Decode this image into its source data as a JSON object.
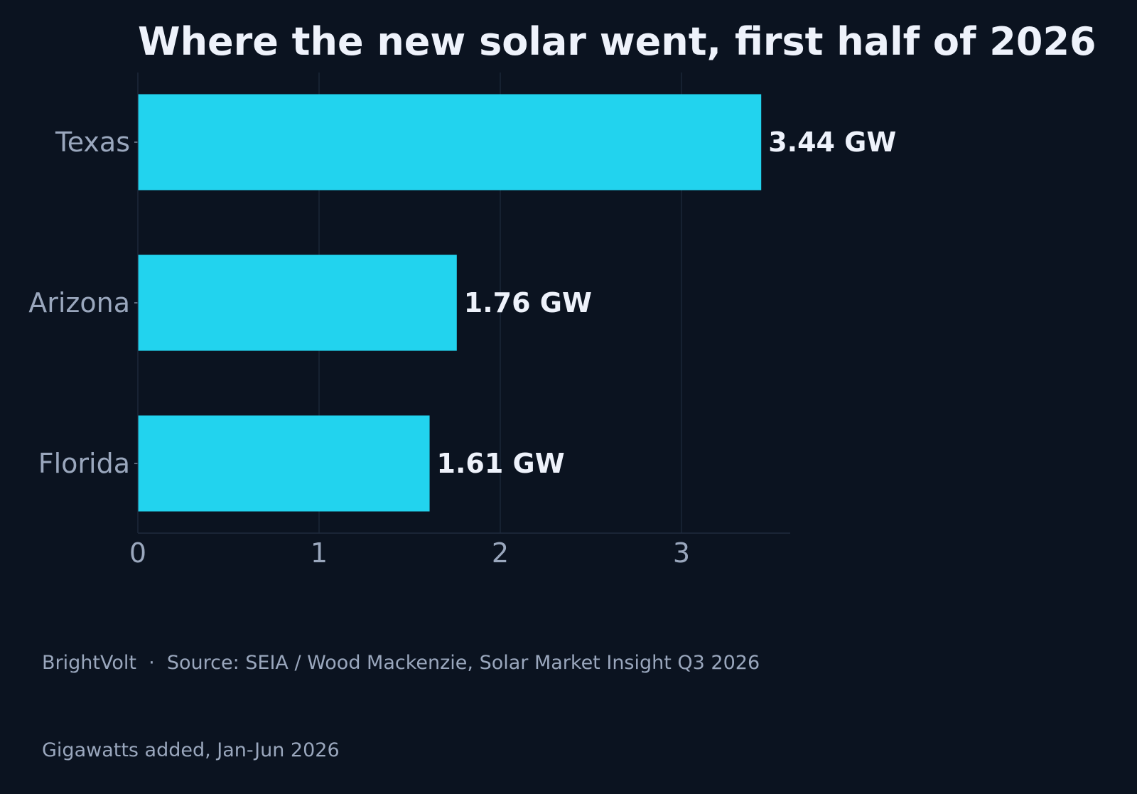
{
  "footer": {
    "source_line": "BrightVolt  ·  Source: SEIA / Wood Mackenzie, Solar Market Insight Q3 2026",
    "note_line": "Gigawatts added, Jan-Jun 2026"
  },
  "chart_data": {
    "type": "bar",
    "orientation": "horizontal",
    "title": "Where the new solar went, first half of 2026",
    "xlabel": "",
    "ylabel": "",
    "categories": [
      "Texas",
      "Arizona",
      "Florida"
    ],
    "values": [
      3.44,
      1.76,
      1.61
    ],
    "value_labels": [
      "3.44 GW",
      "1.76 GW",
      "1.61 GW"
    ],
    "xlim": [
      0,
      3.6
    ],
    "xticks": [
      "0",
      "1",
      "2",
      "3"
    ],
    "grid": "vertical",
    "legend": "none",
    "colors": {
      "background": "#0b1320",
      "bar": "#22d3ee",
      "grid": "#1f2b3d",
      "text": "#eef2fb",
      "muted_text": "#9aa7bd"
    }
  }
}
